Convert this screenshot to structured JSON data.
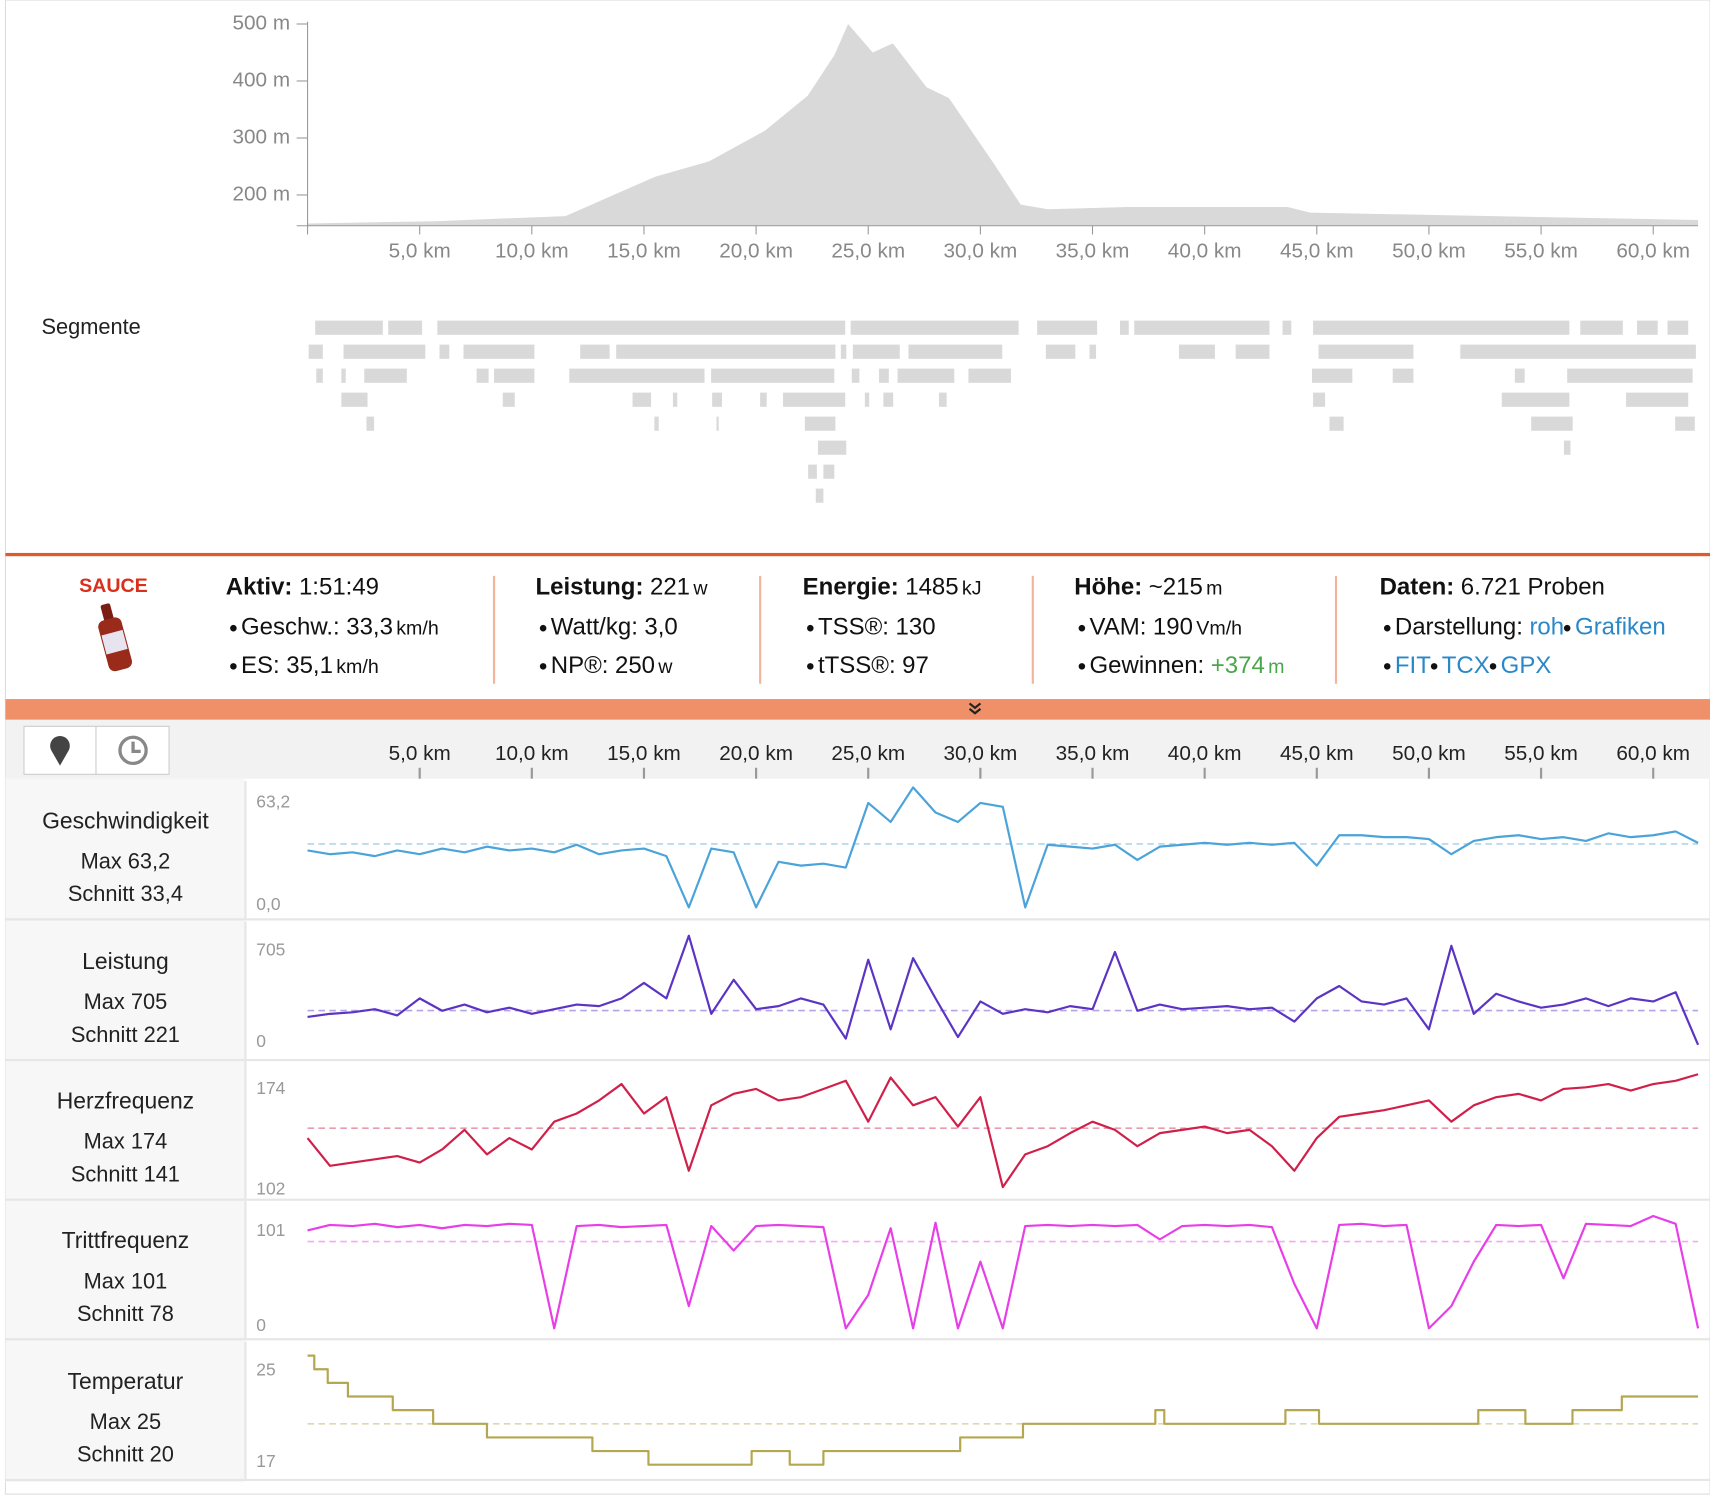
{
  "chart_data": [
    {
      "type": "area",
      "color": "#d9d9d9",
      "x": [
        0,
        5.7,
        11.5,
        15.5,
        17.9,
        20.4,
        22.3,
        23.5,
        24.1,
        25.2,
        26.1,
        27.6,
        28.6,
        30.6,
        31.8,
        33,
        36.6,
        43.7,
        44.7,
        62
      ],
      "values": [
        150,
        154,
        163,
        232,
        259,
        313,
        374,
        446,
        500,
        450,
        466,
        389,
        370,
        255,
        183,
        175,
        179,
        179,
        169,
        156
      ],
      "xlim": [
        0,
        62
      ],
      "ylim": [
        146,
        500
      ],
      "yticks": [
        {
          "value": 200,
          "label": "200 m"
        },
        {
          "value": 300,
          "label": "300 m"
        },
        {
          "value": 400,
          "label": "400 m"
        },
        {
          "value": 500,
          "label": "500 m"
        }
      ],
      "xticks": [
        {
          "value": 5,
          "label": "5,0 km"
        },
        {
          "value": 10,
          "label": "10,0 km"
        },
        {
          "value": 15,
          "label": "15,0 km"
        },
        {
          "value": 20,
          "label": "20,0 km"
        },
        {
          "value": 25,
          "label": "25,0 km"
        },
        {
          "value": 30,
          "label": "30,0 km"
        },
        {
          "value": 35,
          "label": "35,0 km"
        },
        {
          "value": 40,
          "label": "40,0 km"
        },
        {
          "value": 45,
          "label": "45,0 km"
        },
        {
          "value": 50,
          "label": "50,0 km"
        },
        {
          "value": 55,
          "label": "55,0 km"
        },
        {
          "value": 60,
          "label": "60,0 km"
        }
      ]
    },
    {
      "type": "line",
      "title": "Geschwindigkeit",
      "max_label": "Max 63,2",
      "avg_label": "Schnitt 33,4",
      "avg": 33.4,
      "color": "#4aa3d9",
      "x": [
        0,
        1,
        2,
        3,
        4,
        5,
        6,
        7,
        8,
        9,
        10,
        11,
        12,
        13,
        14,
        15,
        16,
        17,
        18,
        19,
        20,
        21,
        22,
        23,
        24,
        25,
        26,
        27,
        28,
        29,
        30,
        31,
        32,
        33,
        34,
        35,
        36,
        37,
        38,
        39,
        40,
        41,
        42,
        43,
        44,
        45,
        46,
        47,
        48,
        49,
        50,
        51,
        52,
        53,
        54,
        55,
        56,
        57,
        58,
        59,
        60,
        61,
        62
      ],
      "values": [
        30,
        28,
        29,
        27,
        30,
        28,
        31,
        29,
        32,
        30,
        31,
        29,
        33,
        28,
        30,
        31,
        27,
        0,
        31,
        29,
        0,
        24,
        22,
        23,
        21,
        55,
        45,
        63.2,
        50,
        45,
        55,
        53,
        0,
        33,
        32,
        31,
        33,
        25,
        32,
        33,
        34,
        33,
        34,
        33,
        34,
        22,
        38,
        38,
        37,
        37,
        36,
        28,
        35,
        37,
        38,
        36,
        37,
        35,
        39,
        37,
        38,
        40,
        34
      ],
      "xlim": [
        0,
        62
      ],
      "ylim": [
        0,
        63.2
      ],
      "yticks": [
        {
          "value": 0,
          "label": "0,0"
        },
        {
          "value": 63.2,
          "label": "63,2"
        }
      ],
      "xticks": [
        {
          "value": 5,
          "label": "5,0 km"
        },
        {
          "value": 10,
          "label": "10,0 km"
        },
        {
          "value": 15,
          "label": "15,0 km"
        },
        {
          "value": 20,
          "label": "20,0 km"
        },
        {
          "value": 25,
          "label": "25,0 km"
        },
        {
          "value": 30,
          "label": "30,0 km"
        },
        {
          "value": 35,
          "label": "35,0 km"
        },
        {
          "value": 40,
          "label": "40,0 km"
        },
        {
          "value": 45,
          "label": "45,0 km"
        },
        {
          "value": 50,
          "label": "50,0 km"
        },
        {
          "value": 55,
          "label": "55,0 km"
        },
        {
          "value": 60,
          "label": "60,0 km"
        }
      ]
    },
    {
      "type": "line",
      "title": "Leistung",
      "max_label": "Max 705",
      "avg_label": "Schnitt 221",
      "avg": 221,
      "color": "#5b34c4",
      "x": [
        0,
        1,
        2,
        3,
        4,
        5,
        6,
        7,
        8,
        9,
        10,
        11,
        12,
        13,
        14,
        15,
        16,
        17,
        18,
        19,
        20,
        21,
        22,
        23,
        24,
        25,
        26,
        27,
        28,
        29,
        30,
        31,
        32,
        33,
        34,
        35,
        36,
        37,
        38,
        39,
        40,
        41,
        42,
        43,
        44,
        45,
        46,
        47,
        48,
        49,
        50,
        51,
        52,
        53,
        54,
        55,
        56,
        57,
        58,
        59,
        60,
        61,
        62
      ],
      "values": [
        180,
        200,
        210,
        230,
        190,
        300,
        220,
        260,
        210,
        240,
        200,
        230,
        260,
        250,
        300,
        400,
        300,
        705,
        200,
        420,
        230,
        250,
        300,
        260,
        40,
        550,
        100,
        560,
        300,
        50,
        280,
        200,
        230,
        210,
        250,
        230,
        600,
        220,
        260,
        230,
        240,
        250,
        230,
        240,
        150,
        300,
        380,
        280,
        260,
        300,
        100,
        640,
        200,
        330,
        280,
        240,
        260,
        300,
        250,
        300,
        280,
        340,
        0
      ],
      "xlim": [
        0,
        62
      ],
      "ylim": [
        0,
        705
      ],
      "yticks": [
        0,
        705
      ]
    },
    {
      "type": "line",
      "title": "Herzfrequenz",
      "max_label": "Max 174",
      "avg_label": "Schnitt 141",
      "avg": 141,
      "color": "#d0204a",
      "x": [
        0,
        1,
        2,
        3,
        4,
        5,
        6,
        7,
        8,
        9,
        10,
        11,
        12,
        13,
        14,
        15,
        16,
        17,
        18,
        19,
        20,
        21,
        22,
        23,
        24,
        25,
        26,
        27,
        28,
        29,
        30,
        31,
        32,
        33,
        34,
        35,
        36,
        37,
        38,
        39,
        40,
        41,
        42,
        43,
        44,
        45,
        46,
        47,
        48,
        49,
        50,
        51,
        52,
        53,
        54,
        55,
        56,
        57,
        58,
        59,
        60,
        61,
        62
      ],
      "values": [
        135,
        118,
        120,
        122,
        124,
        120,
        128,
        140,
        125,
        135,
        128,
        145,
        150,
        158,
        168,
        150,
        160,
        115,
        155,
        162,
        165,
        158,
        160,
        165,
        170,
        145,
        172,
        155,
        160,
        142,
        160,
        105,
        125,
        130,
        138,
        145,
        140,
        130,
        138,
        140,
        142,
        138,
        140,
        130,
        115,
        135,
        148,
        150,
        152,
        155,
        158,
        145,
        155,
        160,
        162,
        158,
        165,
        166,
        168,
        164,
        168,
        170,
        174
      ],
      "xlim": [
        0,
        62
      ],
      "ylim": [
        102,
        174
      ],
      "yticks": [
        102,
        174
      ]
    },
    {
      "type": "line",
      "title": "Trittfrequenz",
      "max_label": "Max 101",
      "avg_label": "Schnitt 78",
      "avg": 78,
      "color": "#e83ee8",
      "x": [
        0,
        1,
        2,
        3,
        4,
        5,
        6,
        7,
        8,
        9,
        10,
        11,
        12,
        13,
        14,
        15,
        16,
        17,
        18,
        19,
        20,
        21,
        22,
        23,
        24,
        25,
        26,
        27,
        28,
        29,
        30,
        31,
        32,
        33,
        34,
        35,
        36,
        37,
        38,
        39,
        40,
        41,
        42,
        43,
        44,
        45,
        46,
        47,
        48,
        49,
        50,
        51,
        52,
        53,
        54,
        55,
        56,
        57,
        58,
        59,
        60,
        61,
        62
      ],
      "values": [
        88,
        93,
        92,
        94,
        91,
        93,
        90,
        93,
        92,
        94,
        93,
        0,
        92,
        93,
        91,
        92,
        93,
        20,
        92,
        70,
        92,
        93,
        92,
        91,
        0,
        30,
        90,
        0,
        95,
        0,
        60,
        0,
        92,
        93,
        92,
        93,
        92,
        93,
        80,
        92,
        93,
        92,
        93,
        91,
        40,
        0,
        93,
        94,
        92,
        93,
        0,
        20,
        60,
        93,
        92,
        93,
        45,
        94,
        93,
        92,
        101,
        94,
        0
      ],
      "xlim": [
        0,
        62
      ],
      "ylim": [
        0,
        101
      ],
      "yticks": [
        0,
        101
      ]
    },
    {
      "type": "line",
      "step": true,
      "title": "Temperatur",
      "max_label": "Max 25",
      "avg_label": "Schnitt 20",
      "avg": 20,
      "color": "#b5a650",
      "x": [
        0,
        0.3,
        0.9,
        1.8,
        3.8,
        5.6,
        8,
        12.7,
        15.2,
        19.8,
        21.5,
        23,
        29.1,
        31.9,
        37.8,
        38.2,
        43.6,
        45.1,
        52.2,
        54.3,
        56.4,
        58.6,
        62
      ],
      "values": [
        25,
        24,
        23,
        22,
        21,
        20,
        19,
        18,
        17,
        18,
        17,
        18,
        19,
        20,
        21,
        20,
        21,
        20,
        21,
        20,
        21,
        22,
        22
      ],
      "xlim": [
        0,
        62
      ],
      "ylim": [
        17,
        25
      ],
      "yticks": [
        17,
        25
      ]
    }
  ],
  "segments_label": "Segmente",
  "logo": "SAUCE",
  "stats": [
    {
      "title": "Aktiv:",
      "value": "1:51:49",
      "items": [
        {
          "label": "Geschw.:",
          "value": "33,3",
          "unit": "km/h"
        },
        {
          "label": "ES:",
          "value": "35,1",
          "unit": "km/h"
        }
      ]
    },
    {
      "title": "Leistung:",
      "value": "221",
      "unit": "w",
      "items": [
        {
          "label": "Watt/kg:",
          "value": "3,0"
        },
        {
          "label": "NP®:",
          "value": "250",
          "unit": "w"
        }
      ]
    },
    {
      "title": "Energie:",
      "value": "1485",
      "unit": "kJ",
      "items": [
        {
          "label": "TSS®:",
          "value": "130"
        },
        {
          "label": "tTSS®:",
          "value": "97"
        }
      ]
    },
    {
      "title": "Höhe:",
      "value": "~215",
      "unit": "m",
      "items": [
        {
          "label": "VAM:",
          "value": "190",
          "unit": "Vm/h"
        },
        {
          "label": "Gewinnen:",
          "value": "+374",
          "unit": "m"
        }
      ]
    },
    {
      "title": "Daten:",
      "value": "6.721 Proben",
      "items": [
        {
          "label": "Darstellung:",
          "links": [
            "roh",
            "Grafiken"
          ]
        },
        {
          "links": [
            "FIT",
            "TCX",
            "GPX"
          ]
        }
      ]
    }
  ]
}
